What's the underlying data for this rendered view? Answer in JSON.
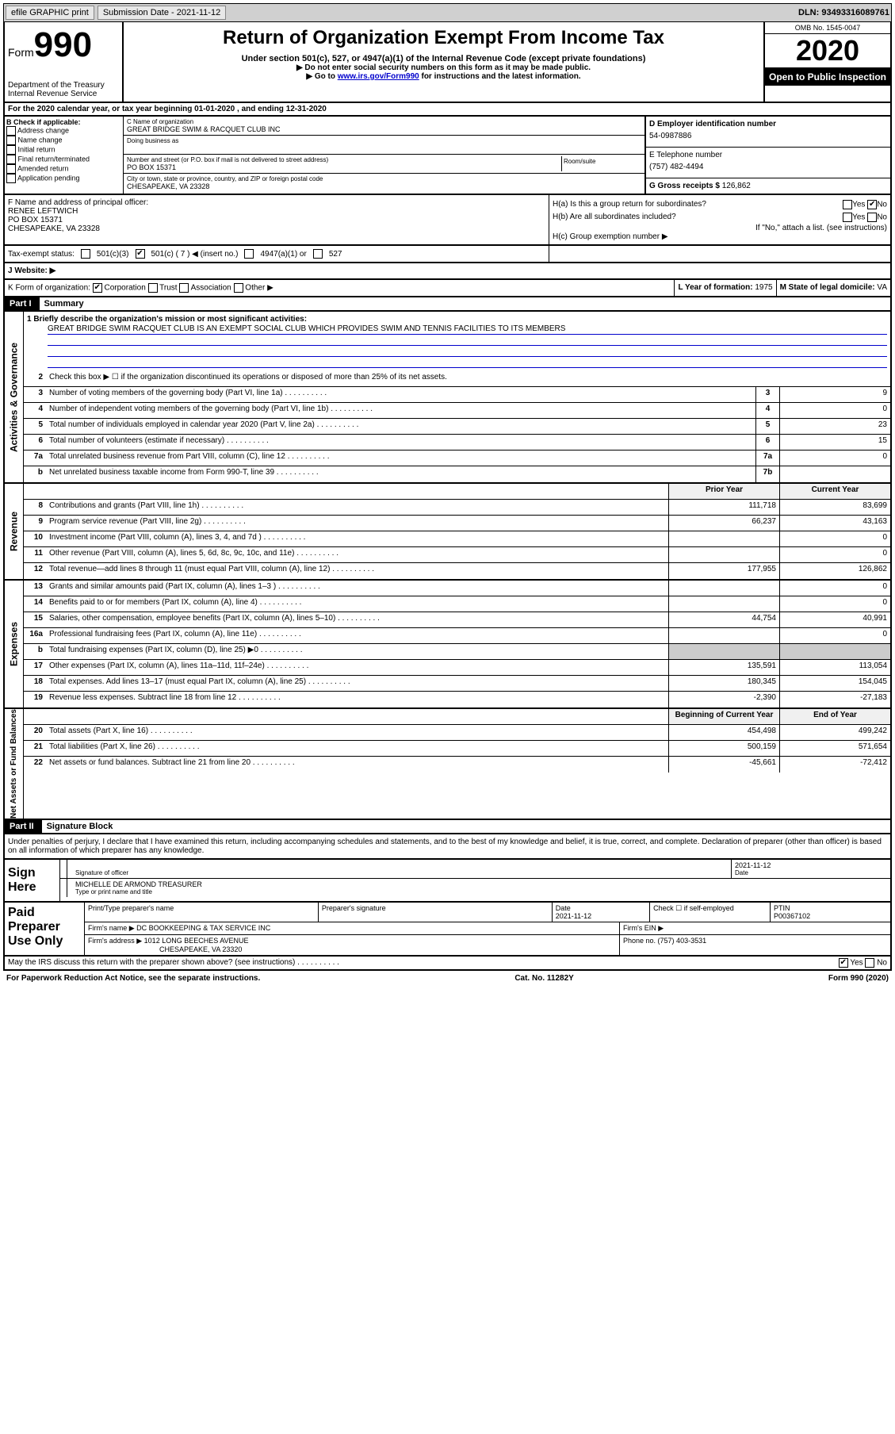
{
  "topbar": {
    "efile": "efile GRAPHIC print",
    "subdate_label": "Submission Date - ",
    "subdate": "2021-11-12",
    "dln_label": "DLN: ",
    "dln": "93493316089761"
  },
  "header": {
    "form_word": "Form",
    "form_no": "990",
    "dept": "Department of the Treasury\nInternal Revenue Service",
    "title": "Return of Organization Exempt From Income Tax",
    "subtitle": "Under section 501(c), 527, or 4947(a)(1) of the Internal Revenue Code (except private foundations)",
    "instr1": "▶ Do not enter social security numbers on this form as it may be made public.",
    "instr2_pre": "▶ Go to ",
    "instr2_link": "www.irs.gov/Form990",
    "instr2_post": " for instructions and the latest information.",
    "omb": "OMB No. 1545-0047",
    "year": "2020",
    "inspection": "Open to Public Inspection"
  },
  "A": "For the 2020 calendar year, or tax year beginning 01-01-2020   , and ending 12-31-2020",
  "B": {
    "label": "B Check if applicable:",
    "opts": [
      "Address change",
      "Name change",
      "Initial return",
      "Final return/terminated",
      "Amended return",
      "Application pending"
    ]
  },
  "C": {
    "name_label": "C Name of organization",
    "name": "GREAT BRIDGE SWIM & RACQUET CLUB INC",
    "dba_label": "Doing business as",
    "addr_label": "Number and street (or P.O. box if mail is not delivered to street address)",
    "suite_label": "Room/suite",
    "addr": "PO BOX 15371",
    "city_label": "City or town, state or province, country, and ZIP or foreign postal code",
    "city": "CHESAPEAKE, VA  23328"
  },
  "D": {
    "label": "D Employer identification number",
    "val": "54-0987886"
  },
  "E": {
    "label": "E Telephone number",
    "val": "(757) 482-4494"
  },
  "G": {
    "label": "G Gross receipts $ ",
    "val": "126,862"
  },
  "F": {
    "label": "F  Name and address of principal officer:",
    "name": "RENEE LEFTWICH",
    "addr1": "PO BOX 15371",
    "addr2": "CHESAPEAKE, VA  23328"
  },
  "H": {
    "a": "H(a)  Is this a group return for subordinates?",
    "a_yes": "Yes",
    "a_no": "No",
    "a_checked": "no",
    "b": "H(b)  Are all subordinates included?",
    "b_yes": "Yes",
    "b_no": "No",
    "b_note": "If \"No,\" attach a list. (see instructions)",
    "c": "H(c)  Group exemption number ▶"
  },
  "taxstatus": {
    "label": "Tax-exempt status:",
    "o1": "501(c)(3)",
    "o2": "501(c) ( 7 ) ◀ (insert no.)",
    "o2_checked": true,
    "o3": "4947(a)(1) or",
    "o4": "527"
  },
  "J": "J    Website: ▶",
  "K": {
    "label": "K Form of organization:",
    "corp": "Corporation",
    "corp_checked": true,
    "trust": "Trust",
    "assoc": "Association",
    "other": "Other ▶"
  },
  "L": {
    "label": "L Year of formation: ",
    "val": "1975"
  },
  "M": {
    "label": "M State of legal domicile: ",
    "val": "VA"
  },
  "part1": {
    "no": "Part I",
    "title": "Summary"
  },
  "summary": {
    "briefly_label": "1   Briefly describe the organization's mission or most significant activities:",
    "briefly": "GREAT BRIDGE SWIM RACQUET CLUB IS AN EXEMPT SOCIAL CLUB WHICH PROVIDES SWIM AND TENNIS FACILITIES TO ITS MEMBERS",
    "line2": "Check this box ▶ ☐ if the organization discontinued its operations or disposed of more than 25% of its net assets.",
    "prior_hdr": "Prior Year",
    "cur_hdr": "Current Year",
    "begin_hdr": "Beginning of Current Year",
    "end_hdr": "End of Year",
    "rows_gov": [
      {
        "n": "3",
        "d": "Number of voting members of the governing body (Part VI, line 1a)",
        "box": "3",
        "v": "9"
      },
      {
        "n": "4",
        "d": "Number of independent voting members of the governing body (Part VI, line 1b)",
        "box": "4",
        "v": "0"
      },
      {
        "n": "5",
        "d": "Total number of individuals employed in calendar year 2020 (Part V, line 2a)",
        "box": "5",
        "v": "23"
      },
      {
        "n": "6",
        "d": "Total number of volunteers (estimate if necessary)",
        "box": "6",
        "v": "15"
      },
      {
        "n": "7a",
        "d": "Total unrelated business revenue from Part VIII, column (C), line 12",
        "box": "7a",
        "v": "0"
      },
      {
        "n": "b",
        "d": "Net unrelated business taxable income from Form 990-T, line 39",
        "box": "7b",
        "v": ""
      }
    ],
    "rows_rev": [
      {
        "n": "8",
        "d": "Contributions and grants (Part VIII, line 1h)",
        "p": "111,718",
        "c": "83,699"
      },
      {
        "n": "9",
        "d": "Program service revenue (Part VIII, line 2g)",
        "p": "66,237",
        "c": "43,163"
      },
      {
        "n": "10",
        "d": "Investment income (Part VIII, column (A), lines 3, 4, and 7d )",
        "p": "",
        "c": "0"
      },
      {
        "n": "11",
        "d": "Other revenue (Part VIII, column (A), lines 5, 6d, 8c, 9c, 10c, and 11e)",
        "p": "",
        "c": "0"
      },
      {
        "n": "12",
        "d": "Total revenue—add lines 8 through 11 (must equal Part VIII, column (A), line 12)",
        "p": "177,955",
        "c": "126,862"
      }
    ],
    "rows_exp": [
      {
        "n": "13",
        "d": "Grants and similar amounts paid (Part IX, column (A), lines 1–3 )",
        "p": "",
        "c": "0"
      },
      {
        "n": "14",
        "d": "Benefits paid to or for members (Part IX, column (A), line 4)",
        "p": "",
        "c": "0"
      },
      {
        "n": "15",
        "d": "Salaries, other compensation, employee benefits (Part IX, column (A), lines 5–10)",
        "p": "44,754",
        "c": "40,991"
      },
      {
        "n": "16a",
        "d": "Professional fundraising fees (Part IX, column (A), line 11e)",
        "p": "",
        "c": "0"
      },
      {
        "n": "b",
        "d": "Total fundraising expenses (Part IX, column (D), line 25) ▶0",
        "p": "grey",
        "c": "grey"
      },
      {
        "n": "17",
        "d": "Other expenses (Part IX, column (A), lines 11a–11d, 11f–24e)",
        "p": "135,591",
        "c": "113,054"
      },
      {
        "n": "18",
        "d": "Total expenses. Add lines 13–17 (must equal Part IX, column (A), line 25)",
        "p": "180,345",
        "c": "154,045"
      },
      {
        "n": "19",
        "d": "Revenue less expenses. Subtract line 18 from line 12",
        "p": "-2,390",
        "c": "-27,183"
      }
    ],
    "rows_net": [
      {
        "n": "20",
        "d": "Total assets (Part X, line 16)",
        "p": "454,498",
        "c": "499,242"
      },
      {
        "n": "21",
        "d": "Total liabilities (Part X, line 26)",
        "p": "500,159",
        "c": "571,654"
      },
      {
        "n": "22",
        "d": "Net assets or fund balances. Subtract line 21 from line 20",
        "p": "-45,661",
        "c": "-72,412"
      }
    ]
  },
  "part2": {
    "no": "Part II",
    "title": "Signature Block"
  },
  "sigtext": "Under penalties of perjury, I declare that I have examined this return, including accompanying schedules and statements, and to the best of my knowledge and belief, it is true, correct, and complete. Declaration of preparer (other than officer) is based on all information of which preparer has any knowledge.",
  "sign": {
    "label": "Sign Here",
    "off_label": "Signature of officer",
    "date": "2021-11-12",
    "date_label": "Date",
    "name": "MICHELLE DE ARMOND  TREASURER",
    "name_label": "Type or print name and title"
  },
  "paid": {
    "label": "Paid Preparer Use Only",
    "h1": "Print/Type preparer's name",
    "h2": "Preparer's signature",
    "h3": "Date",
    "date": "2021-11-12",
    "h4": "Check ☐ if self-employed",
    "h5": "PTIN",
    "ptin": "P00367102",
    "firm_label": "Firm's name    ▶",
    "firm": "DC BOOKKEEPING & TAX SERVICE INC",
    "ein_label": "Firm's EIN ▶",
    "addr_label": "Firm's address ▶",
    "addr1": "1012 LONG BEECHES AVENUE",
    "addr2": "CHESAPEAKE, VA  23320",
    "phone_label": "Phone no. ",
    "phone": "(757) 403-3531"
  },
  "discuss": {
    "q": "May the IRS discuss this return with the preparer shown above? (see instructions)",
    "yes": "Yes",
    "no": "No",
    "checked": "yes"
  },
  "footer": {
    "l": "For Paperwork Reduction Act Notice, see the separate instructions.",
    "c": "Cat. No. 11282Y",
    "r": "Form 990 (2020)"
  }
}
